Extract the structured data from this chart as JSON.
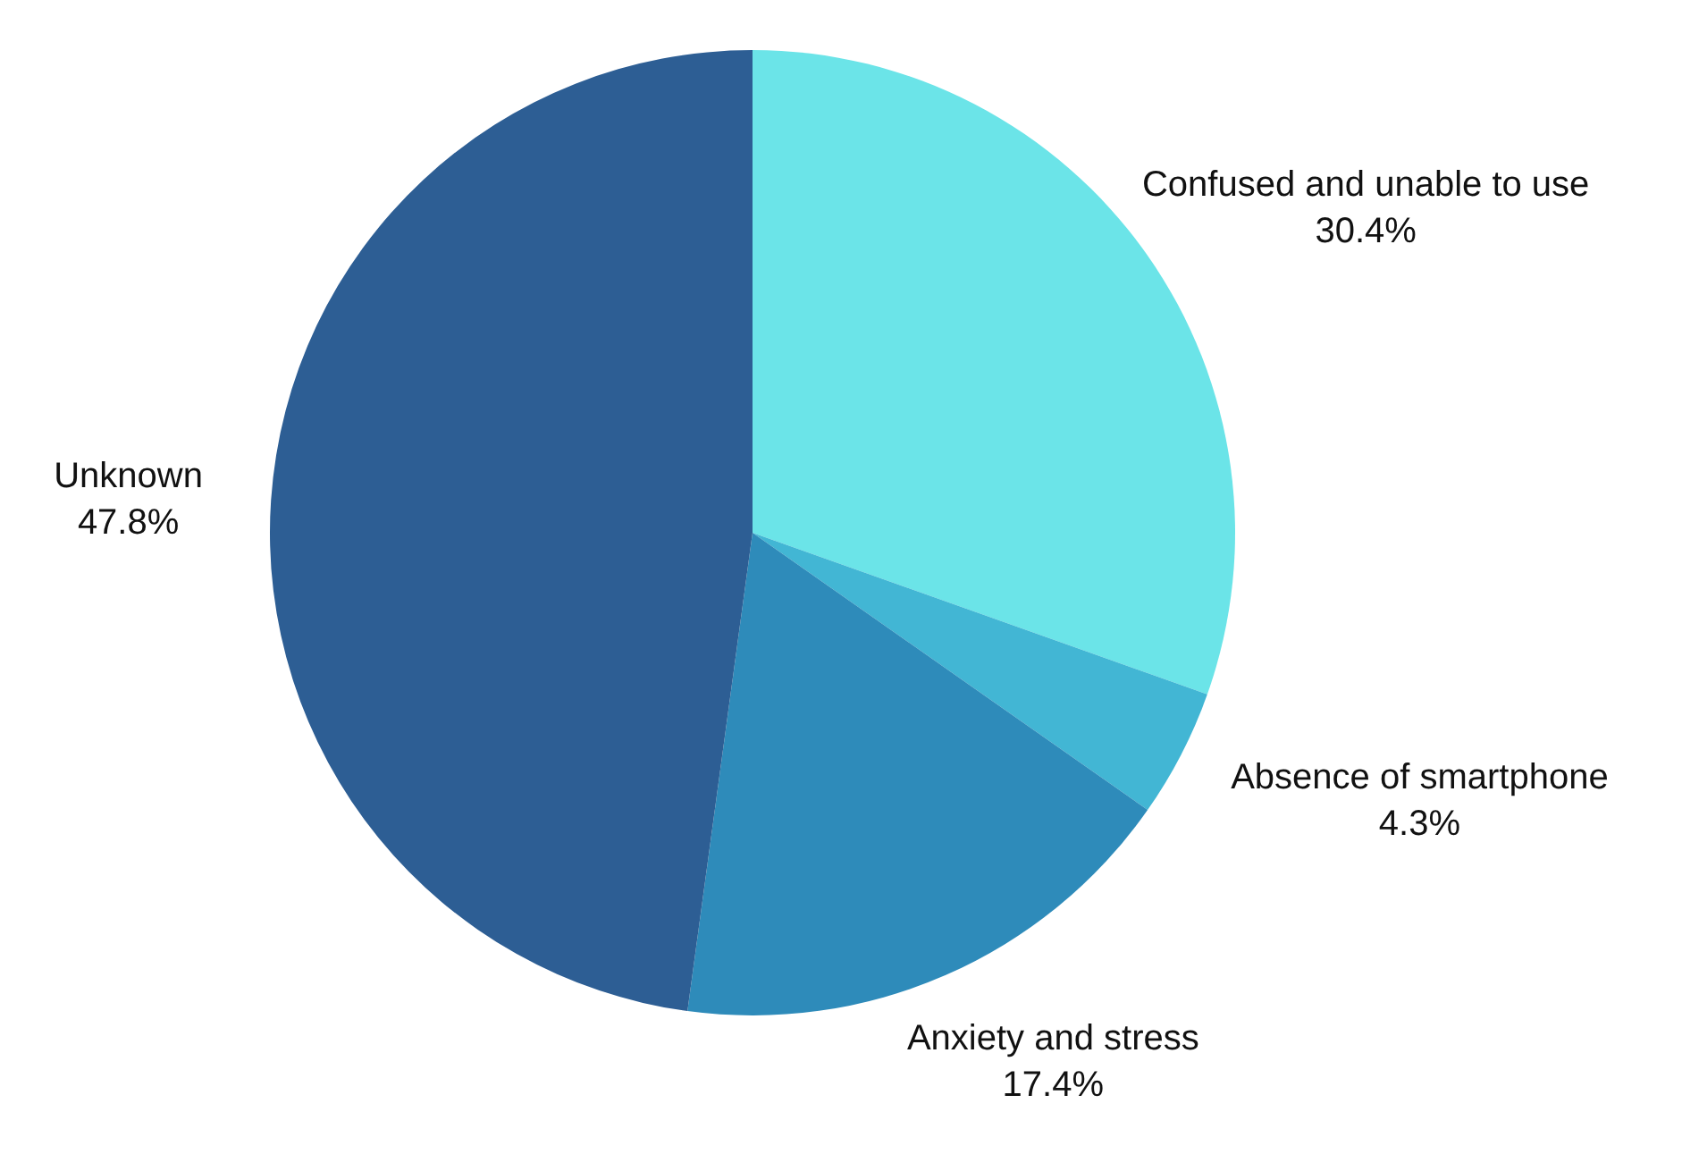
{
  "chart_data": {
    "type": "pie",
    "categories": [
      "Confused and unable to use",
      "Absence of smartphone",
      "Anxiety and stress",
      "Unknown"
    ],
    "values": [
      30.4,
      4.3,
      17.4,
      47.8
    ],
    "value_labels": [
      "30.4%",
      "4.3%",
      "17.4%",
      "47.8%"
    ],
    "colors": [
      "#6be4e8",
      "#42b6d4",
      "#2e8bba",
      "#2d5e94"
    ],
    "legend": false
  }
}
